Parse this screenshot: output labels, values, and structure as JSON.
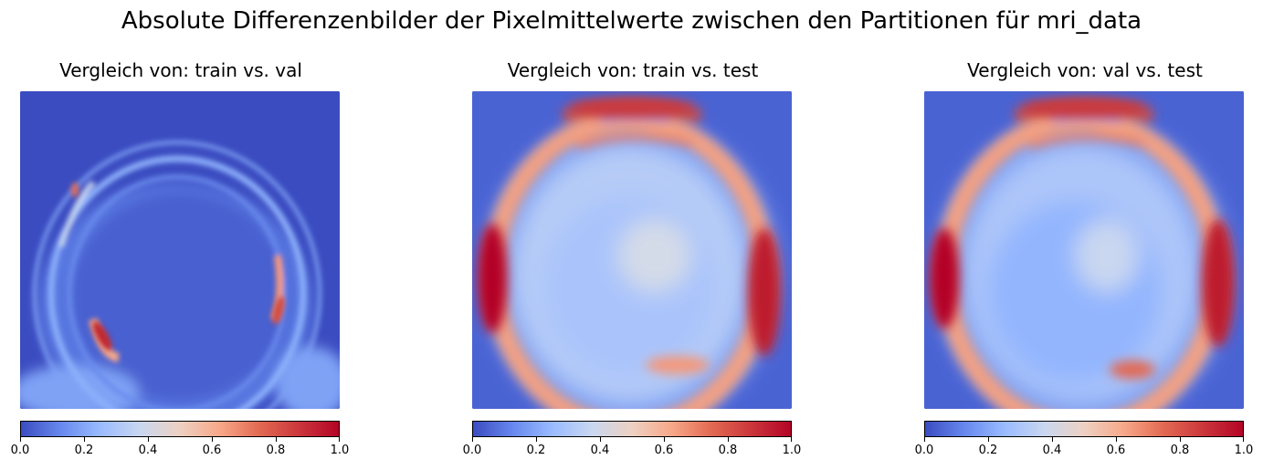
{
  "suptitle": "Absolute Differenzenbilder der Pixelmittelwerte zwischen den Partitionen für mri_data",
  "colormap": {
    "name": "coolwarm",
    "stops": [
      "#3b4cc0",
      "#6788ee",
      "#9abbff",
      "#c9d7f0",
      "#edd1c2",
      "#f7a889",
      "#e26952",
      "#b40426"
    ]
  },
  "chart_data": [
    {
      "type": "heatmap",
      "title": "Vergleich von: train vs. val",
      "colorbar": {
        "range": [
          0,
          1
        ],
        "ticks": [
          "0.0",
          "0.2",
          "0.4",
          "0.6",
          "0.8",
          "1.0"
        ]
      },
      "max_regions": [
        "lower-left arc of ring",
        "right side of ring"
      ]
    },
    {
      "type": "heatmap",
      "title": "Vergleich von: train vs. test",
      "colorbar": {
        "range": [
          0,
          1
        ],
        "ticks": [
          "0.0",
          "0.2",
          "0.4",
          "0.6",
          "0.8",
          "1.0"
        ]
      },
      "max_regions": [
        "left edge of ring",
        "right edge of ring",
        "top arc of ring"
      ]
    },
    {
      "type": "heatmap",
      "title": "Vergleich von: val vs. test",
      "colorbar": {
        "range": [
          0,
          1
        ],
        "ticks": [
          "0.0",
          "0.2",
          "0.4",
          "0.6",
          "0.8",
          "1.0"
        ]
      },
      "max_regions": [
        "left edge of ring",
        "right edge of ring",
        "top arc of ring"
      ]
    }
  ]
}
